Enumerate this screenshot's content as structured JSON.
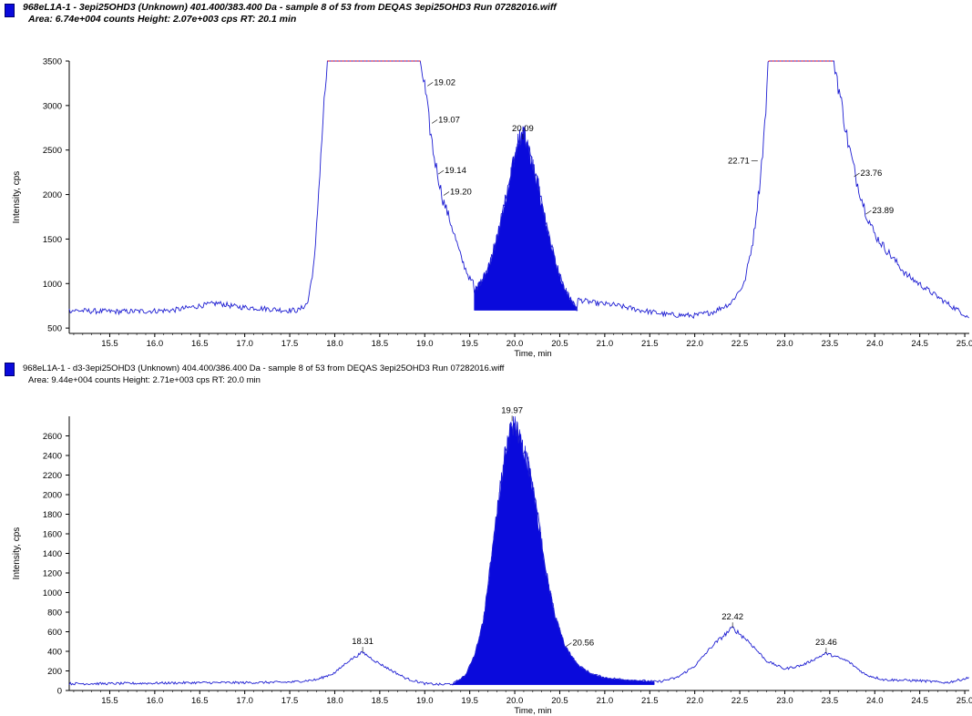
{
  "chart_data": [
    {
      "type": "line",
      "title": "968eL1A-1 - 3epi25OHD3 (Unknown) 401.400/383.400 Da - sample 8 of 53 from DEQAS 3epi25OHD3 Run 07282016.wiff",
      "subtitle": "Area: 6.74e+004 counts  Height: 2.07e+003 cps  RT: 20.1 min",
      "xlabel": "Time, min",
      "ylabel": "Intensity, cps",
      "xlim": [
        15.05,
        25.05
      ],
      "ylim": [
        440,
        3500
      ],
      "xticks": [
        "15.5",
        "16.0",
        "16.5",
        "17.0",
        "17.5",
        "18.0",
        "18.5",
        "19.0",
        "19.5",
        "20.0",
        "20.5",
        "21.0",
        "21.5",
        "22.0",
        "22.5",
        "23.0",
        "23.5",
        "24.0",
        "24.5",
        "25.0"
      ],
      "yticks": [
        "500",
        "1000",
        "1500",
        "2000",
        "2500",
        "3000",
        "3500"
      ],
      "saturation_line_color": "#ff0000",
      "trace_color": "#1e1ed2",
      "fill_color": "#0a0adc",
      "trace": [
        [
          15.05,
          700
        ],
        [
          15.3,
          690
        ],
        [
          15.6,
          685
        ],
        [
          15.9,
          690
        ],
        [
          16.2,
          700
        ],
        [
          16.5,
          750
        ],
        [
          16.7,
          780
        ],
        [
          16.9,
          740
        ],
        [
          17.2,
          720
        ],
        [
          17.45,
          700
        ],
        [
          17.6,
          700
        ],
        [
          17.7,
          780
        ],
        [
          17.78,
          1300
        ],
        [
          17.83,
          2200
        ],
        [
          17.88,
          3000
        ],
        [
          17.92,
          3500
        ],
        [
          18.95,
          3500
        ],
        [
          19.0,
          3200
        ],
        [
          19.05,
          2800
        ],
        [
          19.1,
          2450
        ],
        [
          19.15,
          2200
        ],
        [
          19.2,
          1950
        ],
        [
          19.3,
          1650
        ],
        [
          19.4,
          1300
        ],
        [
          19.5,
          1050
        ],
        [
          19.6,
          950
        ],
        [
          19.7,
          900
        ],
        [
          19.8,
          920
        ],
        [
          20.0,
          900
        ],
        [
          20.3,
          880
        ],
        [
          20.5,
          860
        ],
        [
          20.7,
          820
        ],
        [
          20.9,
          780
        ],
        [
          21.1,
          760
        ],
        [
          21.4,
          700
        ],
        [
          21.7,
          650
        ],
        [
          22.0,
          640
        ],
        [
          22.2,
          680
        ],
        [
          22.4,
          780
        ],
        [
          22.55,
          1000
        ],
        [
          22.65,
          1500
        ],
        [
          22.72,
          2100
        ],
        [
          22.78,
          2800
        ],
        [
          22.82,
          3500
        ],
        [
          23.55,
          3500
        ],
        [
          23.6,
          3200
        ],
        [
          23.7,
          2600
        ],
        [
          23.8,
          2150
        ],
        [
          23.9,
          1800
        ],
        [
          24.0,
          1550
        ],
        [
          24.15,
          1350
        ],
        [
          24.35,
          1100
        ],
        [
          24.6,
          920
        ],
        [
          24.8,
          780
        ],
        [
          25.05,
          620
        ]
      ],
      "filled_peak": {
        "x_start": 19.55,
        "x_end": 20.7,
        "baseline": 700,
        "profile": [
          [
            19.55,
            900
          ],
          [
            19.7,
            1150
          ],
          [
            19.8,
            1500
          ],
          [
            19.9,
            1950
          ],
          [
            19.98,
            2350
          ],
          [
            20.05,
            2620
          ],
          [
            20.1,
            2700
          ],
          [
            20.15,
            2500
          ],
          [
            20.25,
            2150
          ],
          [
            20.35,
            1650
          ],
          [
            20.45,
            1250
          ],
          [
            20.55,
            950
          ],
          [
            20.62,
            820
          ],
          [
            20.7,
            700
          ]
        ]
      },
      "saturated_ranges": [
        [
          17.92,
          18.95
        ],
        [
          22.82,
          23.55
        ]
      ],
      "peak_labels": [
        {
          "x": 19.02,
          "y": 3220,
          "label": "19.02"
        },
        {
          "x": 19.07,
          "y": 2800,
          "label": "19.07"
        },
        {
          "x": 20.09,
          "y": 2620,
          "label": "20.09"
        },
        {
          "x": 19.14,
          "y": 2230,
          "label": "19.14"
        },
        {
          "x": 19.2,
          "y": 1990,
          "label": "19.20"
        },
        {
          "x": 22.71,
          "y": 2380,
          "label": "22.71"
        },
        {
          "x": 23.76,
          "y": 2200,
          "label": "23.76"
        },
        {
          "x": 23.89,
          "y": 1780,
          "label": "23.89"
        }
      ]
    },
    {
      "type": "line",
      "title": "968eL1A-1 - d3-3epi25OHD3 (Unknown) 404.400/386.400 Da - sample 8 of 53 from DEQAS 3epi25OHD3 Run 07282016.wiff",
      "subtitle": "Area: 9.44e+004 counts  Height: 2.71e+003 cps  RT: 20.0 min",
      "xlabel": "Time, min",
      "ylabel": "Intensity, cps",
      "xlim": [
        15.05,
        25.05
      ],
      "ylim": [
        0,
        2800
      ],
      "xticks": [
        "15.5",
        "16.0",
        "16.5",
        "17.0",
        "17.5",
        "18.0",
        "18.5",
        "19.0",
        "19.5",
        "20.0",
        "20.5",
        "21.0",
        "21.5",
        "22.0",
        "22.5",
        "23.0",
        "23.5",
        "24.0",
        "24.5",
        "25.0"
      ],
      "yticks": [
        "0",
        "200",
        "400",
        "600",
        "800",
        "1000",
        "1200",
        "1400",
        "1600",
        "1800",
        "2000",
        "2200",
        "2400",
        "2600"
      ],
      "trace_color": "#1e1ed2",
      "fill_color": "#0a0adc",
      "trace": [
        [
          15.05,
          70
        ],
        [
          15.5,
          70
        ],
        [
          16.0,
          75
        ],
        [
          16.5,
          80
        ],
        [
          17.0,
          80
        ],
        [
          17.5,
          85
        ],
        [
          17.8,
          110
        ],
        [
          18.0,
          180
        ],
        [
          18.15,
          300
        ],
        [
          18.31,
          390
        ],
        [
          18.45,
          300
        ],
        [
          18.6,
          220
        ],
        [
          18.8,
          120
        ],
        [
          19.0,
          70
        ],
        [
          19.2,
          60
        ],
        [
          19.4,
          80
        ],
        [
          21.6,
          90
        ],
        [
          21.8,
          130
        ],
        [
          22.0,
          250
        ],
        [
          22.2,
          460
        ],
        [
          22.42,
          640
        ],
        [
          22.6,
          500
        ],
        [
          22.8,
          300
        ],
        [
          23.0,
          220
        ],
        [
          23.2,
          260
        ],
        [
          23.46,
          380
        ],
        [
          23.7,
          300
        ],
        [
          23.9,
          160
        ],
        [
          24.1,
          110
        ],
        [
          24.5,
          100
        ],
        [
          24.8,
          80
        ],
        [
          25.05,
          130
        ]
      ],
      "filled_peak": {
        "x_start": 19.3,
        "x_end": 21.55,
        "baseline": 60,
        "profile": [
          [
            19.3,
            60
          ],
          [
            19.45,
            150
          ],
          [
            19.55,
            350
          ],
          [
            19.65,
            700
          ],
          [
            19.72,
            1200
          ],
          [
            19.8,
            1800
          ],
          [
            19.88,
            2350
          ],
          [
            19.95,
            2650
          ],
          [
            20.0,
            2750
          ],
          [
            20.05,
            2600
          ],
          [
            20.15,
            2300
          ],
          [
            20.25,
            1800
          ],
          [
            20.35,
            1200
          ],
          [
            20.45,
            750
          ],
          [
            20.56,
            450
          ],
          [
            20.7,
            260
          ],
          [
            20.85,
            170
          ],
          [
            21.0,
            130
          ],
          [
            21.2,
            110
          ],
          [
            21.4,
            100
          ],
          [
            21.55,
            90
          ]
        ]
      },
      "peak_labels": [
        {
          "x": 18.31,
          "y": 390,
          "label": "18.31"
        },
        {
          "x": 19.97,
          "y": 2750,
          "label": "19.97"
        },
        {
          "x": 20.56,
          "y": 450,
          "label": "20.56"
        },
        {
          "x": 22.42,
          "y": 640,
          "label": "22.42"
        },
        {
          "x": 23.46,
          "y": 380,
          "label": "23.46"
        }
      ]
    }
  ]
}
